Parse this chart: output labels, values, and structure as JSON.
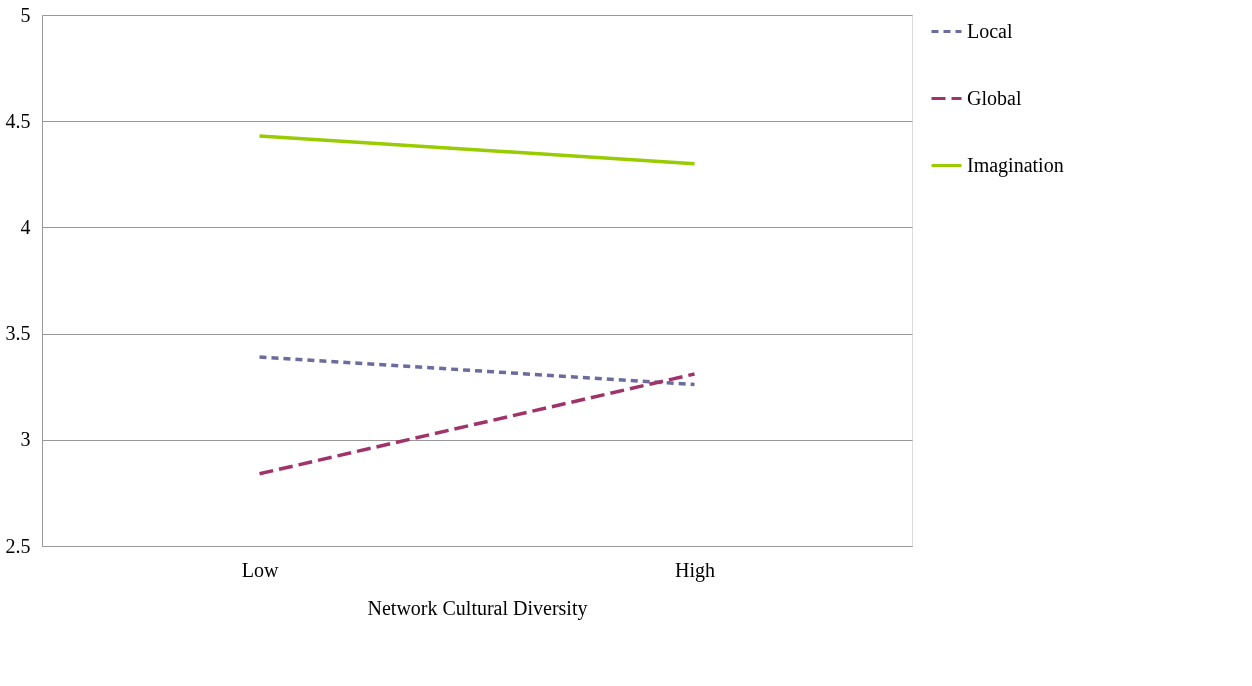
{
  "chart_data": {
    "type": "line",
    "xlabel": "Network Cultural Diversity",
    "categories": [
      "Low",
      "High"
    ],
    "series": [
      {
        "name": "Local",
        "color": "#6b6b9e",
        "values": [
          3.39,
          3.26
        ],
        "line_style": "dotted"
      },
      {
        "name": "Global",
        "color": "#a0336a",
        "values": [
          2.84,
          3.31
        ],
        "line_style": "dashed"
      },
      {
        "name": "Imagination",
        "color": "#99cc00",
        "values": [
          4.43,
          4.3
        ],
        "line_style": "solid"
      }
    ],
    "ylim": [
      2.5,
      5
    ],
    "yticks": [
      2.5,
      3,
      3.5,
      4,
      4.5,
      5
    ],
    "grid": "y",
    "legend": "right",
    "marker": "none"
  }
}
